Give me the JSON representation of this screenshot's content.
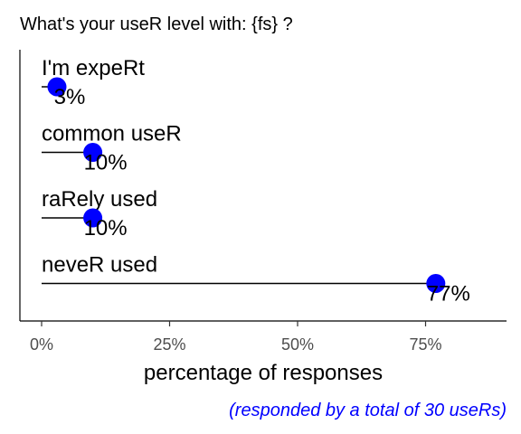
{
  "chart_data": {
    "type": "lollipop",
    "title": "What's your useR level with: {fs} ?",
    "xlabel": "percentage of responses",
    "caption": "(responded by a total of 30 useRs)",
    "categories": [
      "I'm expeRt",
      "common useR",
      "raRely used",
      "neveR used"
    ],
    "values": [
      3,
      10,
      10,
      77
    ],
    "value_labels": [
      "3%",
      "10%",
      "10%",
      "77%"
    ],
    "xlim": [
      0,
      90
    ],
    "x_ticks": [
      0,
      25,
      50,
      75
    ],
    "x_tick_labels": [
      "0%",
      "25%",
      "50%",
      "75%"
    ],
    "grid": false,
    "legend": "none",
    "colors": {
      "point": "#0000ff",
      "stem": "#000000",
      "caption": "#0000ff",
      "tick_text": "#4d4d4d"
    }
  }
}
